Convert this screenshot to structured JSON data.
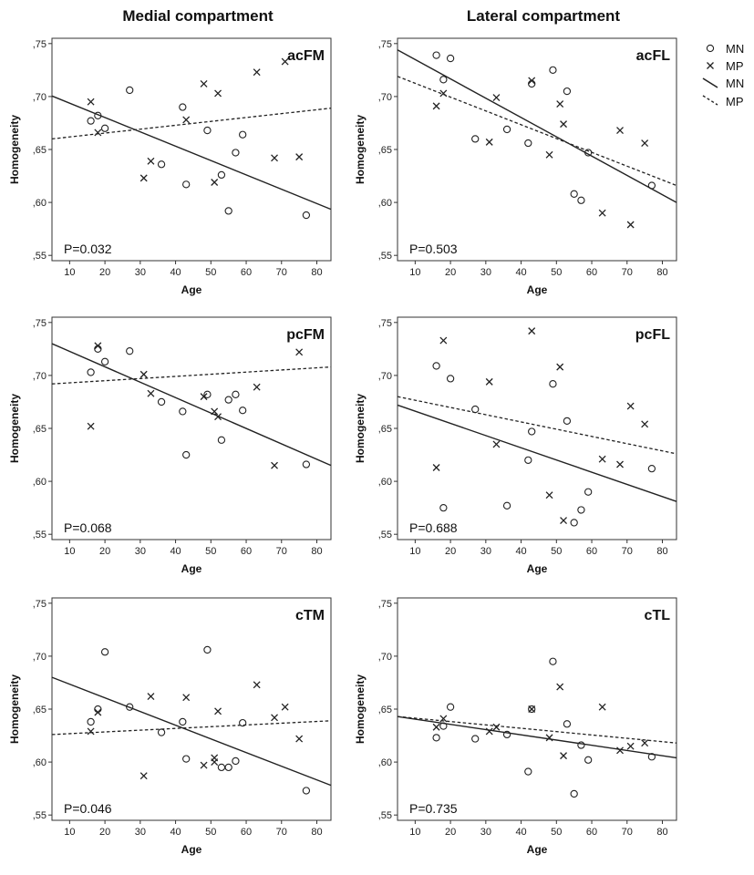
{
  "column_titles": [
    "Medial compartment",
    "Lateral compartment"
  ],
  "legend": {
    "markers": [
      {
        "label": "MN",
        "marker": "circle"
      },
      {
        "label": "MP",
        "marker": "cross"
      }
    ],
    "lines": [
      {
        "label": "MN",
        "style": "solid"
      },
      {
        "label": "MP",
        "style": "dashed"
      }
    ]
  },
  "chart_data": [
    {
      "type": "scatter",
      "title": "acFM",
      "xlabel": "Age",
      "ylabel": "Homogeneity",
      "xlim": [
        5,
        84
      ],
      "ylim": [
        0.545,
        0.755
      ],
      "xticks": [
        "10",
        "20",
        "30",
        "40",
        "50",
        "60",
        "70",
        "80"
      ],
      "yticks": [
        ",55",
        ",60",
        ",65",
        ",70",
        ",75"
      ],
      "pvalue": "P=0.032",
      "series": [
        {
          "name": "MN",
          "marker": "circle",
          "x": [
            16,
            18,
            20,
            27,
            36,
            42,
            43,
            49,
            53,
            55,
            57,
            59,
            77
          ],
          "y": [
            0.677,
            0.682,
            0.67,
            0.706,
            0.636,
            0.69,
            0.617,
            0.668,
            0.626,
            0.592,
            0.647,
            0.664,
            0.588
          ]
        },
        {
          "name": "MP",
          "marker": "cross",
          "x": [
            16,
            18,
            31,
            33,
            43,
            48,
            51,
            52,
            63,
            68,
            71,
            75
          ],
          "y": [
            0.695,
            0.666,
            0.623,
            0.639,
            0.678,
            0.712,
            0.619,
            0.703,
            0.723,
            0.642,
            0.733,
            0.643
          ]
        }
      ],
      "fits": [
        {
          "name": "MN",
          "style": "solid",
          "x": [
            5,
            84
          ],
          "y": [
            0.7005,
            0.5935
          ]
        },
        {
          "name": "MP",
          "style": "dashed",
          "x": [
            5,
            84
          ],
          "y": [
            0.66,
            0.689
          ]
        }
      ]
    },
    {
      "type": "scatter",
      "title": "acFL",
      "xlabel": "Age",
      "ylabel": "Homogeneity",
      "xlim": [
        5,
        84
      ],
      "ylim": [
        0.545,
        0.755
      ],
      "xticks": [
        "10",
        "20",
        "30",
        "40",
        "50",
        "60",
        "70",
        "80"
      ],
      "yticks": [
        ",55",
        ",60",
        ",65",
        ",70",
        ",75"
      ],
      "pvalue": "P=0.503",
      "series": [
        {
          "name": "MN",
          "marker": "circle",
          "x": [
            16,
            18,
            20,
            27,
            36,
            42,
            43,
            49,
            53,
            55,
            57,
            59,
            77
          ],
          "y": [
            0.739,
            0.716,
            0.736,
            0.66,
            0.669,
            0.656,
            0.712,
            0.725,
            0.705,
            0.608,
            0.602,
            0.647,
            0.616
          ]
        },
        {
          "name": "MP",
          "marker": "cross",
          "x": [
            16,
            18,
            31,
            33,
            43,
            48,
            51,
            52,
            63,
            68,
            71,
            75
          ],
          "y": [
            0.691,
            0.703,
            0.657,
            0.699,
            0.715,
            0.645,
            0.693,
            0.674,
            0.59,
            0.668,
            0.579,
            0.656
          ]
        }
      ],
      "fits": [
        {
          "name": "MN",
          "style": "solid",
          "x": [
            5,
            84
          ],
          "y": [
            0.744,
            0.6
          ]
        },
        {
          "name": "MP",
          "style": "dashed",
          "x": [
            5,
            84
          ],
          "y": [
            0.719,
            0.616
          ]
        }
      ]
    },
    {
      "type": "scatter",
      "title": "pcFM",
      "xlabel": "Age",
      "ylabel": "Homogeneity",
      "xlim": [
        5,
        84
      ],
      "ylim": [
        0.545,
        0.755
      ],
      "xticks": [
        "10",
        "20",
        "30",
        "40",
        "50",
        "60",
        "70",
        "80"
      ],
      "yticks": [
        ",55",
        ",60",
        ",65",
        ",70",
        ",75"
      ],
      "pvalue": "P=0.068",
      "series": [
        {
          "name": "MN",
          "marker": "circle",
          "x": [
            16,
            18,
            20,
            27,
            36,
            42,
            43,
            49,
            53,
            55,
            57,
            59,
            77
          ],
          "y": [
            0.703,
            0.725,
            0.713,
            0.723,
            0.675,
            0.666,
            0.625,
            0.682,
            0.639,
            0.677,
            0.682,
            0.667,
            0.616
          ]
        },
        {
          "name": "MP",
          "marker": "cross",
          "x": [
            16,
            18,
            31,
            33,
            48,
            51,
            52,
            63,
            68,
            75
          ],
          "y": [
            0.652,
            0.728,
            0.701,
            0.683,
            0.68,
            0.666,
            0.661,
            0.689,
            0.615,
            0.722
          ]
        }
      ],
      "fits": [
        {
          "name": "MN",
          "style": "solid",
          "x": [
            5,
            84
          ],
          "y": [
            0.73,
            0.615
          ]
        },
        {
          "name": "MP",
          "style": "dashed",
          "x": [
            5,
            84
          ],
          "y": [
            0.692,
            0.708
          ]
        }
      ]
    },
    {
      "type": "scatter",
      "title": "pcFL",
      "xlabel": "Age",
      "ylabel": "Homogeneity",
      "xlim": [
        5,
        84
      ],
      "ylim": [
        0.545,
        0.755
      ],
      "xticks": [
        "10",
        "20",
        "30",
        "40",
        "50",
        "60",
        "70",
        "80"
      ],
      "yticks": [
        ",55",
        ",60",
        ",65",
        ",70",
        ",75"
      ],
      "pvalue": "P=0.688",
      "series": [
        {
          "name": "MN",
          "marker": "circle",
          "x": [
            16,
            18,
            20,
            27,
            36,
            42,
            43,
            49,
            53,
            55,
            57,
            59,
            77
          ],
          "y": [
            0.709,
            0.575,
            0.697,
            0.668,
            0.577,
            0.62,
            0.647,
            0.692,
            0.657,
            0.561,
            0.573,
            0.59,
            0.612
          ]
        },
        {
          "name": "MP",
          "marker": "cross",
          "x": [
            16,
            18,
            31,
            33,
            43,
            48,
            51,
            52,
            63,
            68,
            71,
            75
          ],
          "y": [
            0.613,
            0.733,
            0.694,
            0.635,
            0.742,
            0.587,
            0.708,
            0.563,
            0.621,
            0.616,
            0.671,
            0.654
          ]
        }
      ],
      "fits": [
        {
          "name": "MN",
          "style": "solid",
          "x": [
            5,
            84
          ],
          "y": [
            0.672,
            0.581
          ]
        },
        {
          "name": "MP",
          "style": "dashed",
          "x": [
            5,
            84
          ],
          "y": [
            0.68,
            0.626
          ]
        }
      ]
    },
    {
      "type": "scatter",
      "title": "cTM",
      "xlabel": "Age",
      "ylabel": "Homogeneity",
      "xlim": [
        5,
        84
      ],
      "ylim": [
        0.545,
        0.755
      ],
      "xticks": [
        "10",
        "20",
        "30",
        "40",
        "50",
        "60",
        "70",
        "80"
      ],
      "yticks": [
        ",55",
        ",60",
        ",65",
        ",70",
        ",75"
      ],
      "pvalue": "P=0.046",
      "series": [
        {
          "name": "MN",
          "marker": "circle",
          "x": [
            16,
            18,
            20,
            27,
            36,
            42,
            43,
            49,
            53,
            55,
            57,
            59,
            77
          ],
          "y": [
            0.638,
            0.65,
            0.704,
            0.652,
            0.628,
            0.638,
            0.603,
            0.706,
            0.595,
            0.595,
            0.601,
            0.637,
            0.573
          ]
        },
        {
          "name": "MP",
          "marker": "cross",
          "x": [
            16,
            18,
            31,
            33,
            43,
            48,
            51,
            51,
            52,
            63,
            68,
            71,
            75
          ],
          "y": [
            0.629,
            0.647,
            0.587,
            0.662,
            0.661,
            0.597,
            0.604,
            0.6,
            0.648,
            0.673,
            0.642,
            0.652,
            0.622
          ]
        }
      ],
      "fits": [
        {
          "name": "MN",
          "style": "solid",
          "x": [
            5,
            84
          ],
          "y": [
            0.68,
            0.578
          ]
        },
        {
          "name": "MP",
          "style": "dashed",
          "x": [
            5,
            84
          ],
          "y": [
            0.626,
            0.639
          ]
        }
      ]
    },
    {
      "type": "scatter",
      "title": "cTL",
      "xlabel": "Age",
      "ylabel": "Homogeneity",
      "xlim": [
        5,
        84
      ],
      "ylim": [
        0.545,
        0.755
      ],
      "xticks": [
        "10",
        "20",
        "30",
        "40",
        "50",
        "60",
        "70",
        "80"
      ],
      "yticks": [
        ",55",
        ",60",
        ",65",
        ",70",
        ",75"
      ],
      "pvalue": "P=0.735",
      "series": [
        {
          "name": "MN",
          "marker": "circle",
          "x": [
            16,
            18,
            20,
            27,
            36,
            42,
            43,
            49,
            53,
            55,
            57,
            59,
            77
          ],
          "y": [
            0.623,
            0.634,
            0.652,
            0.622,
            0.626,
            0.591,
            0.65,
            0.695,
            0.636,
            0.57,
            0.616,
            0.602,
            0.605
          ]
        },
        {
          "name": "MP",
          "marker": "cross",
          "x": [
            16,
            18,
            31,
            33,
            43,
            48,
            51,
            52,
            63,
            68,
            71,
            75
          ],
          "y": [
            0.633,
            0.641,
            0.629,
            0.633,
            0.65,
            0.623,
            0.671,
            0.606,
            0.652,
            0.611,
            0.615,
            0.618
          ]
        }
      ],
      "fits": [
        {
          "name": "MN",
          "style": "solid",
          "x": [
            5,
            84
          ],
          "y": [
            0.643,
            0.604
          ]
        },
        {
          "name": "MP",
          "style": "dashed",
          "x": [
            5,
            84
          ],
          "y": [
            0.643,
            0.618
          ]
        }
      ]
    }
  ]
}
